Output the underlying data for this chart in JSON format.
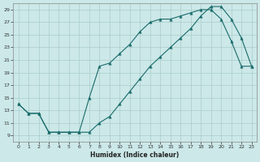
{
  "title": "",
  "xlabel": "Humidex (Indice chaleur)",
  "bg_color": "#cce8e8",
  "grid_color": "#aacccc",
  "line_color": "#1a6b6b",
  "xlim": [
    -0.5,
    23.5
  ],
  "ylim": [
    8.0,
    30.0
  ],
  "xticks": [
    0,
    1,
    2,
    3,
    4,
    5,
    6,
    7,
    8,
    9,
    10,
    11,
    12,
    13,
    14,
    15,
    16,
    17,
    18,
    19,
    20,
    21,
    22,
    23
  ],
  "yticks": [
    9,
    11,
    13,
    15,
    17,
    19,
    21,
    23,
    25,
    27,
    29
  ],
  "line1_x": [
    0,
    1,
    2,
    3,
    4,
    5,
    6,
    7,
    8,
    9,
    10,
    11,
    12,
    13,
    14,
    15,
    16,
    17,
    18,
    19,
    20,
    21,
    22,
    23
  ],
  "line1_y": [
    14,
    12.5,
    12.5,
    9.5,
    9.5,
    9.5,
    9.5,
    15.0,
    20.0,
    20.5,
    22.0,
    23.5,
    25.5,
    27.0,
    27.5,
    27.5,
    28.0,
    28.5,
    29.0,
    29.0,
    27.5,
    24.0,
    20.0,
    20.0
  ],
  "line2_x": [
    0,
    1,
    2,
    3,
    4,
    5,
    6,
    7,
    8,
    9,
    10,
    11,
    12,
    13,
    14,
    15,
    16,
    17,
    18,
    19,
    20,
    21,
    22,
    23
  ],
  "line2_y": [
    14,
    12.5,
    12.5,
    9.5,
    9.5,
    9.5,
    9.5,
    9.5,
    11.0,
    12.0,
    14.0,
    16.0,
    18.0,
    20.0,
    21.5,
    23.0,
    24.5,
    26.0,
    28.0,
    29.5,
    29.5,
    27.5,
    24.5,
    20.0
  ]
}
